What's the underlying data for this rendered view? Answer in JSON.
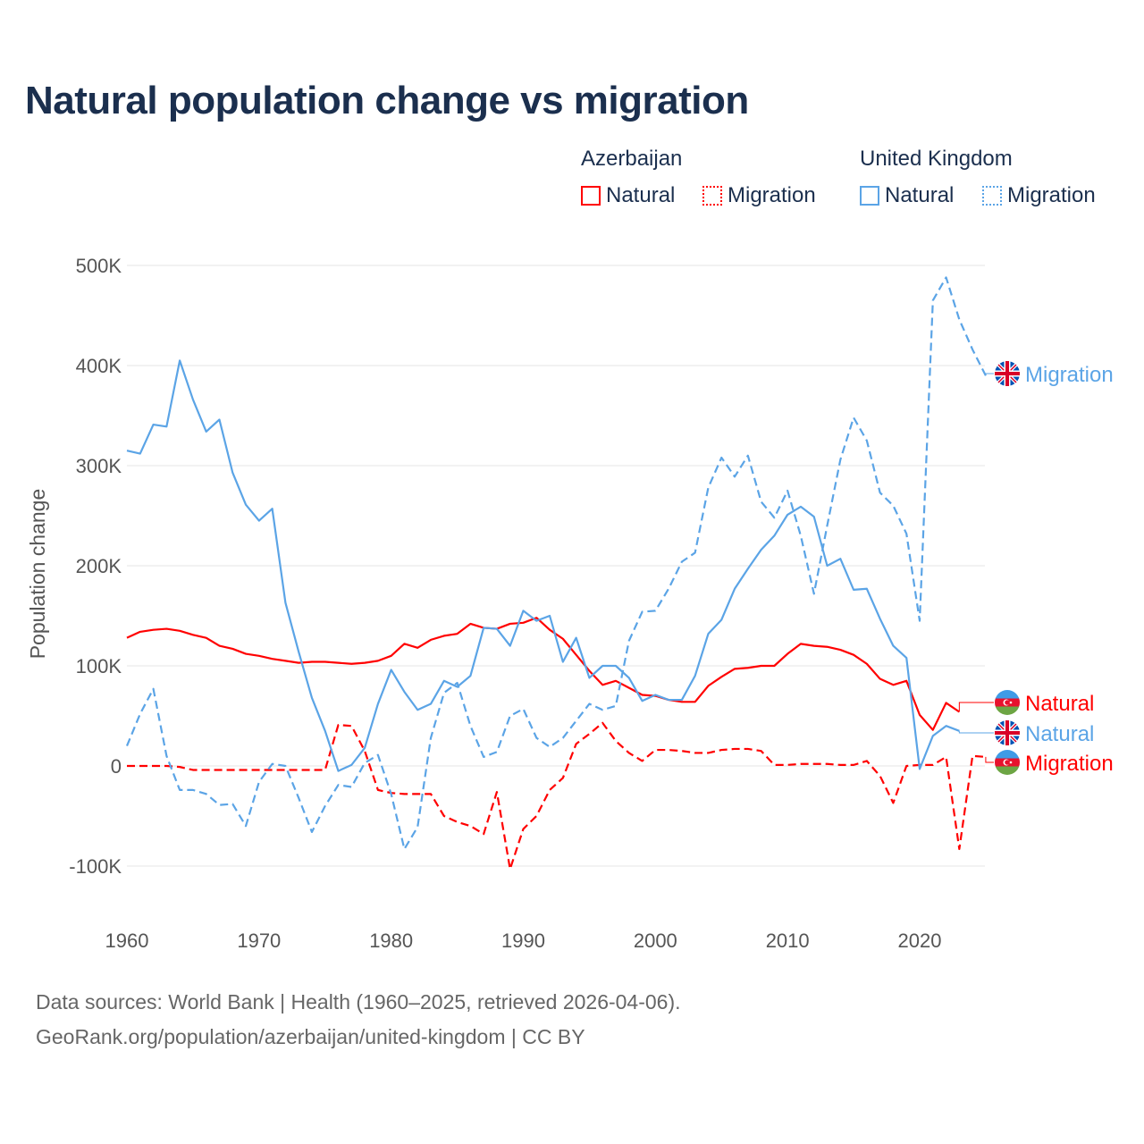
{
  "title": "Natural population change vs migration",
  "legend": {
    "groups": [
      {
        "country": "Azerbaijan",
        "items": [
          "Natural",
          "Migration"
        ]
      },
      {
        "country": "United Kingdom",
        "items": [
          "Natural",
          "Migration"
        ]
      }
    ]
  },
  "footer": {
    "line1": "Data sources: World Bank | Health (1960–2025, retrieved 2026-04-06).",
    "line2": "GeoRank.org/population/azerbaijan/united-kingdom | CC BY"
  },
  "chart_data": {
    "type": "line",
    "title": "Natural population change vs migration",
    "xlabel": "",
    "ylabel": "Population change",
    "xlim": [
      1960,
      2025
    ],
    "ylim": [
      -150000,
      500000
    ],
    "xticks": [
      1960,
      1970,
      1980,
      1990,
      2000,
      2010,
      2020
    ],
    "yticks": [
      -100000,
      0,
      100000,
      200000,
      300000,
      400000,
      500000
    ],
    "ytick_labels": [
      "-100K",
      "0",
      "100K",
      "200K",
      "300K",
      "400K",
      "500K"
    ],
    "grid": true,
    "colors": {
      "Azerbaijan": "#ff0000",
      "United Kingdom": "#5ba4e6"
    },
    "series": [
      {
        "name": "Natural",
        "country": "Azerbaijan",
        "style": "solid",
        "start": 1960,
        "end_label": "Natural",
        "values_k": [
          128,
          134,
          136,
          137,
          135,
          131,
          128,
          120,
          117,
          112,
          110,
          107,
          105,
          103,
          104,
          104,
          103,
          102,
          103,
          105,
          110,
          122,
          118,
          126,
          130,
          132,
          142,
          138,
          137,
          142,
          143,
          148,
          136,
          127,
          111,
          95,
          81,
          85,
          78,
          71,
          70,
          66,
          64,
          64,
          80,
          89,
          97,
          98,
          100,
          100,
          112,
          122,
          120,
          119,
          116,
          111,
          102,
          87,
          81,
          85,
          51,
          36,
          63,
          54
        ]
      },
      {
        "name": "Migration",
        "country": "Azerbaijan",
        "style": "dashed",
        "start": 1960,
        "end_label": "Migration",
        "values_k": [
          0,
          0,
          0,
          0,
          -1,
          -4,
          -4,
          -4,
          -4,
          -4,
          -4,
          -4,
          -4,
          -4,
          -4,
          -4,
          41,
          40,
          15,
          -24,
          -27,
          -28,
          -28,
          -28,
          -50,
          -56,
          -60,
          -68,
          -26,
          -103,
          -63,
          -50,
          -24,
          -12,
          22,
          32,
          43,
          25,
          13,
          5,
          16,
          16,
          15,
          13,
          13,
          16,
          17,
          17,
          15,
          1,
          1,
          2,
          2,
          2,
          1,
          1,
          5,
          -10,
          -37,
          0,
          1,
          1,
          9,
          -83,
          10,
          9
        ]
      },
      {
        "name": "Natural",
        "country": "United Kingdom",
        "style": "solid",
        "start": 1960,
        "end_label": "Natural",
        "values_k": [
          315,
          312,
          341,
          339,
          405,
          366,
          334,
          346,
          293,
          261,
          245,
          257,
          163,
          114,
          68,
          35,
          -5,
          1,
          18,
          62,
          96,
          74,
          56,
          62,
          85,
          79,
          90,
          138,
          137,
          120,
          155,
          145,
          150,
          104,
          128,
          88,
          100,
          100,
          88,
          65,
          71,
          66,
          66,
          90,
          132,
          146,
          177,
          197,
          216,
          230,
          251,
          259,
          249,
          200,
          207,
          176,
          177,
          147,
          120,
          108,
          -3,
          30,
          40,
          35
        ]
      },
      {
        "name": "Migration",
        "country": "United Kingdom",
        "style": "dashed",
        "start": 1960,
        "end_label": "Migration",
        "values_k": [
          20,
          52,
          77,
          10,
          -24,
          -24,
          -28,
          -39,
          -38,
          -60,
          -16,
          2,
          0,
          -32,
          -66,
          -40,
          -19,
          -21,
          3,
          11,
          -28,
          -83,
          -61,
          28,
          73,
          83,
          40,
          9,
          14,
          50,
          57,
          28,
          19,
          28,
          45,
          62,
          56,
          60,
          125,
          154,
          155,
          177,
          204,
          213,
          278,
          308,
          289,
          310,
          264,
          248,
          275,
          230,
          172,
          240,
          306,
          348,
          325,
          273,
          260,
          232,
          145,
          465,
          488,
          446,
          416,
          390
        ]
      }
    ]
  }
}
